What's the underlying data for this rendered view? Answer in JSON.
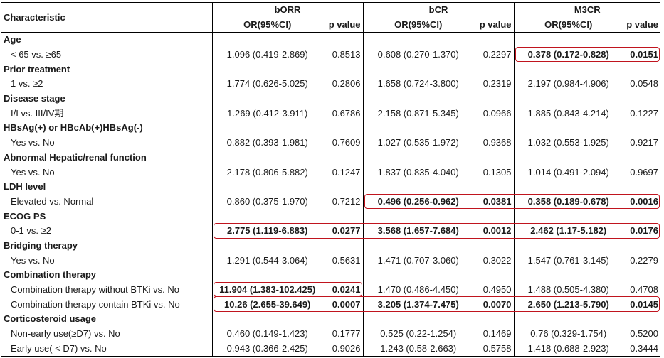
{
  "header": {
    "characteristic": "Characteristic",
    "groups": [
      "bORR",
      "bCR",
      "M3CR"
    ],
    "or_label": "OR(95%CI)",
    "p_label": "p value"
  },
  "rows": [
    {
      "type": "group",
      "label": "Age"
    },
    {
      "type": "sub",
      "label": "< 65 vs. ≥65",
      "cells": [
        {
          "or": "1.096 (0.419-2.869)",
          "p": "0.8513",
          "bold": false
        },
        {
          "or": "0.608 (0.270-1.370)",
          "p": "0.2297",
          "bold": false
        },
        {
          "or": "0.378 (0.172-0.828)",
          "p": "0.0151",
          "bold": true
        }
      ]
    },
    {
      "type": "group",
      "label": "Prior treatment"
    },
    {
      "type": "sub",
      "label": "1 vs. ≥2",
      "cells": [
        {
          "or": "1.774 (0.626-5.025)",
          "p": "0.2806",
          "bold": false
        },
        {
          "or": "1.658 (0.724-3.800)",
          "p": "0.2319",
          "bold": false
        },
        {
          "or": "2.197 (0.984-4.906)",
          "p": "0.0548",
          "bold": false
        }
      ]
    },
    {
      "type": "group",
      "label": "Disease stage"
    },
    {
      "type": "sub",
      "label": "I/I vs. III/IV期",
      "cells": [
        {
          "or": "1.269 (0.412-3.911)",
          "p": "0.6786",
          "bold": false
        },
        {
          "or": "2.158 (0.871-5.345)",
          "p": "0.0966",
          "bold": false
        },
        {
          "or": "1.885 (0.843-4.214)",
          "p": "0.1227",
          "bold": false
        }
      ]
    },
    {
      "type": "group",
      "label": "HBsAg(+) or HBcAb(+)HBsAg(-)"
    },
    {
      "type": "sub",
      "label": "Yes vs. No",
      "cells": [
        {
          "or": "0.882 (0.393-1.981)",
          "p": "0.7609",
          "bold": false
        },
        {
          "or": "1.027 (0.535-1.972)",
          "p": "0.9368",
          "bold": false
        },
        {
          "or": "1.032 (0.553-1.925)",
          "p": "0.9217",
          "bold": false
        }
      ]
    },
    {
      "type": "group",
      "label": "Abnormal Hepatic/renal function"
    },
    {
      "type": "sub",
      "label": "Yes vs. No",
      "cells": [
        {
          "or": "2.178 (0.806-5.882)",
          "p": "0.1247",
          "bold": false
        },
        {
          "or": "1.837 (0.835-4.040)",
          "p": "0.1305",
          "bold": false
        },
        {
          "or": "1.014 (0.491-2.094)",
          "p": "0.9697",
          "bold": false
        }
      ]
    },
    {
      "type": "group",
      "label": "LDH level"
    },
    {
      "type": "sub",
      "label": "Elevated vs. Normal",
      "cells": [
        {
          "or": "0.860 (0.375-1.970)",
          "p": "0.7212",
          "bold": false
        },
        {
          "or": "0.496 (0.256-0.962)",
          "p": "0.0381",
          "bold": true
        },
        {
          "or": "0.358 (0.189-0.678)",
          "p": "0.0016",
          "bold": true
        }
      ]
    },
    {
      "type": "group",
      "label": "ECOG PS"
    },
    {
      "type": "sub",
      "label": "0-1 vs. ≥2",
      "cells": [
        {
          "or": "2.775 (1.119-6.883)",
          "p": "0.0277",
          "bold": true
        },
        {
          "or": "3.568 (1.657-7.684)",
          "p": "0.0012",
          "bold": true
        },
        {
          "or": "2.462 (1.17-5.182)",
          "p": "0.0176",
          "bold": true
        }
      ]
    },
    {
      "type": "group",
      "label": "Bridging therapy"
    },
    {
      "type": "sub",
      "label": "Yes vs. No",
      "cells": [
        {
          "or": "1.291 (0.544-3.064)",
          "p": "0.5631",
          "bold": false
        },
        {
          "or": "1.471 (0.707-3.060)",
          "p": "0.3022",
          "bold": false
        },
        {
          "or": "1.547 (0.761-3.145)",
          "p": "0.2279",
          "bold": false
        }
      ]
    },
    {
      "type": "group",
      "label": "Combination therapy"
    },
    {
      "type": "sub",
      "label": "Combination therapy without BTKi vs. No",
      "cells": [
        {
          "or": "11.904 (1.383-102.425)",
          "p": "0.0241",
          "bold": true
        },
        {
          "or": "1.470 (0.486-4.450)",
          "p": "0.4950",
          "bold": false
        },
        {
          "or": "1.488 (0.505-4.380)",
          "p": "0.4708",
          "bold": false
        }
      ]
    },
    {
      "type": "sub",
      "label": "Combination therapy contain BTKi vs. No",
      "cells": [
        {
          "or": "10.26 (2.655-39.649)",
          "p": "0.0007",
          "bold": true
        },
        {
          "or": "3.205 (1.374-7.475)",
          "p": "0.0070",
          "bold": true
        },
        {
          "or": "2.650 (1.213-5.790)",
          "p": "0.0145",
          "bold": true
        }
      ]
    },
    {
      "type": "group",
      "label": "Corticosteroid usage"
    },
    {
      "type": "sub",
      "label": "Non-early use(≥D7)  vs. No",
      "cells": [
        {
          "or": "0.460 (0.149-1.423)",
          "p": "0.1777",
          "bold": false
        },
        {
          "or": "0.525 (0.22-1.254)",
          "p": "0.1469",
          "bold": false
        },
        {
          "or": "0.76 (0.329-1.754)",
          "p": "0.5200",
          "bold": false
        }
      ]
    },
    {
      "type": "sub",
      "label": "Early use( < D7) vs. No",
      "cells": [
        {
          "or": "0.943 (0.366-2.425)",
          "p": "0.9026",
          "bold": false
        },
        {
          "or": "1.243 (0.58-2.663)",
          "p": "0.5758",
          "bold": false
        },
        {
          "or": "1.418 (0.688-2.923)",
          "p": "0.3444",
          "bold": false
        }
      ]
    }
  ],
  "highlight_color": "#c0141e"
}
